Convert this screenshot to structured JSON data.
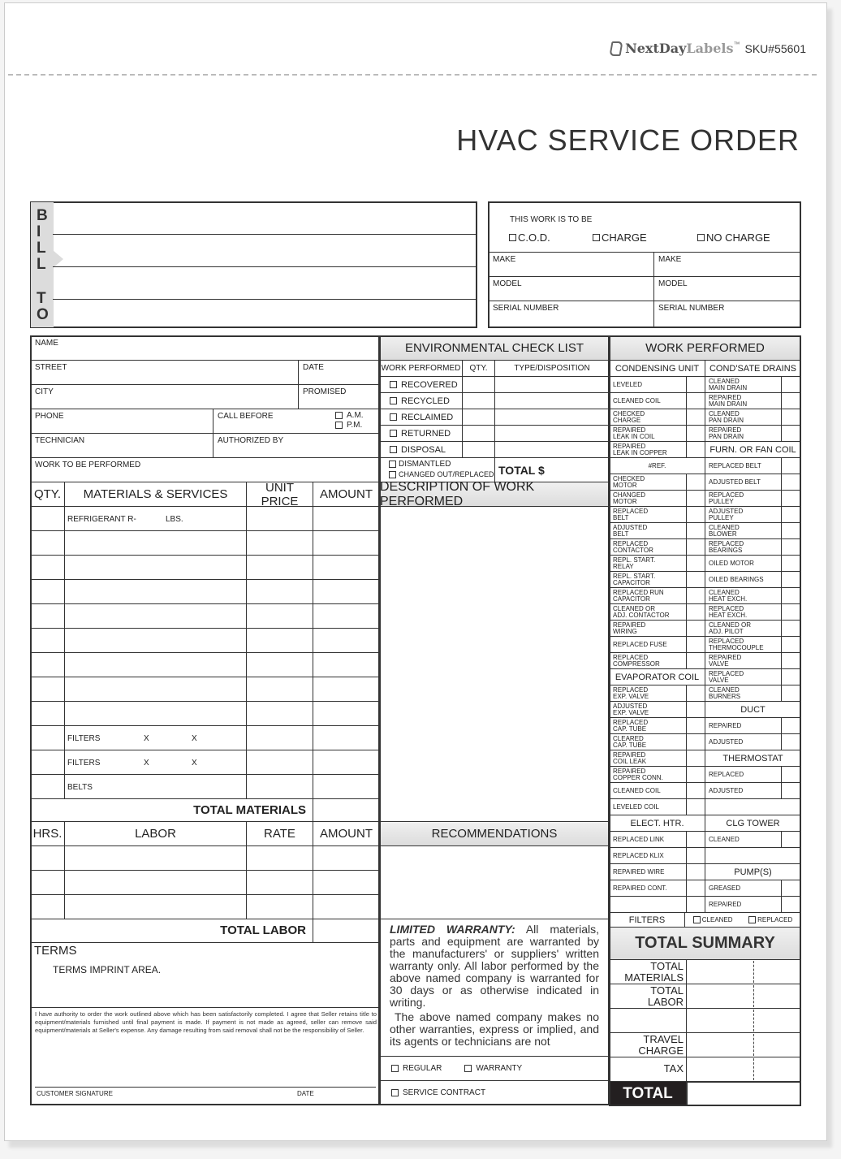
{
  "brand": {
    "logo_text_dark": "NextDay",
    "logo_text_light": "Labels",
    "tm": "™",
    "sku": "SKU#55601"
  },
  "title": "HVAC SERVICE ORDER",
  "bill_to": {
    "letters": [
      "B",
      "I",
      "L",
      "L",
      "T",
      "O"
    ]
  },
  "work_type": {
    "heading": "THIS WORK IS TO BE",
    "options": [
      "C.O.D.",
      "CHARGE",
      "NO CHARGE"
    ],
    "make": "MAKE",
    "model": "MODEL",
    "serial": "SERIAL NUMBER"
  },
  "customer": {
    "name": "NAME",
    "street": "STREET",
    "date": "DATE",
    "city": "CITY",
    "promised": "PROMISED",
    "phone": "PHONE",
    "call_before": "CALL BEFORE",
    "am": "A.M.",
    "pm": "P.M.",
    "technician": "TECHNICIAN",
    "authorized_by": "AUTHORIZED BY",
    "work_to_be_performed": "WORK TO BE PERFORMED"
  },
  "materials": {
    "headers": [
      "QTY.",
      "MATERIALS & SERVICES",
      "UNIT PRICE",
      "AMOUNT"
    ],
    "rows": [
      [
        "REFRIGERANT R-",
        "LBS."
      ],
      [],
      [],
      [],
      [],
      [],
      [],
      [],
      [],
      [
        "FILTERS",
        "X",
        "X"
      ],
      [
        "FILTERS",
        "X",
        "X"
      ],
      [
        "BELTS"
      ]
    ],
    "total_label": "TOTAL MATERIALS"
  },
  "labor": {
    "headers": [
      "HRS.",
      "LABOR",
      "RATE",
      "AMOUNT"
    ],
    "total_label": "TOTAL LABOR"
  },
  "terms": {
    "heading": "TERMS",
    "imprint": "TERMS IMPRINT AREA."
  },
  "authorization": {
    "text": "I have authority to order the work outlined above which has been satisfactorily completed. I agree that Seller retains title to equipment/materials furnished until final payment is made. If payment is not made as agreed, seller can remove said equipment/materials at Seller's expense. Any damage resulting from said removal shall not be the responsibility of Seller.",
    "signature_label": "CUSTOMER SIGNATURE",
    "date_label": "DATE"
  },
  "env": {
    "title": "ENVIRONMENTAL CHECK LIST",
    "headers": [
      "WORK PERFORMED",
      "QTY.",
      "TYPE/DISPOSITION"
    ],
    "items": [
      "RECOVERED",
      "RECYCLED",
      "RECLAIMED",
      "RETURNED",
      "DISPOSAL"
    ],
    "dismantled": "DISMANTLED",
    "changed": "CHANGED OUT/REPLACED",
    "total": "TOTAL  $"
  },
  "description_title": "DESCRIPTION OF WORK PERFORMED",
  "recommendations_title": "RECOMMENDATIONS",
  "warranty": {
    "lead": "LIMITED WARRANTY:",
    "body": "All materials, parts and equipment are warranted by the manufacturers' or suppliers' written warranty only. All labor performed by the above named company is warranted for 30 days or as otherwise indicated in writing.",
    "body2": "The above named company makes no other warranties, express or implied, and its agents or technicians are not"
  },
  "service_type": {
    "regular": "REGULAR",
    "warranty": "WARRANTY",
    "service_contract": "SERVICE CONTRACT"
  },
  "work_performed": {
    "title": "WORK PERFORMED",
    "rows": [
      {
        "l": "CONDENSING UNIT",
        "lh": true,
        "r": "COND'SATE DRAINS",
        "rh": true
      },
      {
        "l": "LEVELED",
        "r": "CLEANED\nMAIN DRAIN"
      },
      {
        "l": "CLEANED COIL",
        "r": "REPAIRED\nMAIN DRAIN"
      },
      {
        "l": "CHECKED\nCHARGE",
        "r": "CLEANED\nPAN DRAIN"
      },
      {
        "l": "REPAIRED\nLEAK IN COIL",
        "r": "REPAIRED\nPAN DRAIN"
      },
      {
        "l": "REPAIRED\nLEAK IN COPPER",
        "r": "FURN. OR FAN COIL",
        "rh": true
      },
      {
        "l": "#REF.",
        "lc": true,
        "r": "REPLACED BELT"
      },
      {
        "l": "CHECKED\nMOTOR",
        "r": "ADJUSTED BELT"
      },
      {
        "l": "CHANGED\nMOTOR",
        "r": "REPLACED\nPULLEY"
      },
      {
        "l": "REPLACED\nBELT",
        "r": "ADJUSTED\nPULLEY"
      },
      {
        "l": "ADJUSTED\nBELT",
        "r": "CLEANED\nBLOWER"
      },
      {
        "l": "REPLACED\nCONTACTOR",
        "r": "REPLACED\nBEARINGS"
      },
      {
        "l": "REPL. START.\nRELAY",
        "r": "OILED MOTOR"
      },
      {
        "l": "REPL. START.\nCAPACITOR",
        "r": "OILED BEARINGS"
      },
      {
        "l": "REPLACED RUN\nCAPACITOR",
        "r": "CLEANED\nHEAT EXCH."
      },
      {
        "l": "CLEANED OR\nADJ. CONTACTOR",
        "r": "REPLACED\nHEAT EXCH."
      },
      {
        "l": "REPAIRED\nWIRING",
        "r": "CLEANED OR\nADJ. PILOT"
      },
      {
        "l": "REPLACED FUSE",
        "r": "REPLACED\nTHERMOCOUPLE"
      },
      {
        "l": "REPLACED\nCOMPRESSOR",
        "r": "REPAIRED\nVALVE"
      },
      {
        "l": "EVAPORATOR COIL",
        "lh": true,
        "r": "REPLACED\nVALVE"
      },
      {
        "l": "REPLACED\nEXP. VALVE",
        "r": "CLEANED\nBURNERS"
      },
      {
        "l": "ADJUSTED\nEXP. VALVE",
        "r": "DUCT",
        "rh": true
      },
      {
        "l": "REPLACED\nCAP. TUBE",
        "r": "REPAIRED"
      },
      {
        "l": "CLEARED\nCAP. TUBE",
        "r": "ADJUSTED"
      },
      {
        "l": "REPAIRED\nCOIL LEAK",
        "r": "THERMOSTAT",
        "rh": true
      },
      {
        "l": "REPAIRED\nCOPPER CONN.",
        "r": "REPLACED"
      },
      {
        "l": "CLEANED COIL",
        "r": "ADJUSTED"
      },
      {
        "l": "LEVELED COIL",
        "r": "",
        "rh": true
      },
      {
        "l": "ELECT. HTR.",
        "lh": true,
        "r": "CLG TOWER",
        "rh": true
      },
      {
        "l": "REPLACED LINK",
        "r": "CLEANED"
      },
      {
        "l": "REPLACED KLIX",
        "r": "",
        "rh": true
      },
      {
        "l": "REPAIRED WIRE",
        "r": "PUMP(S)",
        "rh": true
      },
      {
        "l": "REPAIRED CONT.",
        "r": "GREASED"
      },
      {
        "l": "",
        "r": "REPAIRED"
      }
    ]
  },
  "filters": {
    "label": "FILTERS",
    "cleaned": "CLEANED",
    "replaced": "REPLACED"
  },
  "summary": {
    "title": "TOTAL SUMMARY",
    "rows": [
      "TOTAL\nMATERIALS",
      "TOTAL\nLABOR",
      "",
      "TRAVEL\nCHARGE",
      "TAX"
    ],
    "total": "TOTAL"
  }
}
